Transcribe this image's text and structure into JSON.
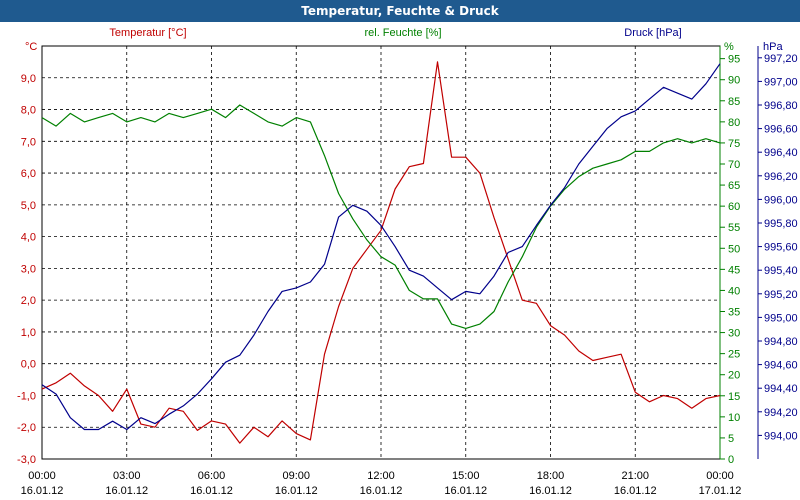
{
  "window": {
    "title": "Temperatur, Feuchte & Druck"
  },
  "colors": {
    "temperature": "#c00000",
    "humidity": "#008000",
    "pressure": "#00008b",
    "grid": "#000000",
    "titlebar": "#1f5a8f"
  },
  "chart_data": {
    "type": "line",
    "title": "Temperatur, Feuchte & Druck",
    "grid": true,
    "x": {
      "range": [
        "16.01.12 00:00",
        "17.01.12 00:00"
      ],
      "ticks": [
        {
          "time": "00:00",
          "date": "16.01.12"
        },
        {
          "time": "03:00",
          "date": "16.01.12"
        },
        {
          "time": "06:00",
          "date": "16.01.12"
        },
        {
          "time": "09:00",
          "date": "16.01.12"
        },
        {
          "time": "12:00",
          "date": "16.01.12"
        },
        {
          "time": "15:00",
          "date": "16.01.12"
        },
        {
          "time": "18:00",
          "date": "16.01.12"
        },
        {
          "time": "21:00",
          "date": "16.01.12"
        },
        {
          "time": "00:00",
          "date": "17.01.12"
        }
      ]
    },
    "axes": {
      "temperature": {
        "label": "Temperatur [°C]",
        "unit": "°C",
        "ylim": [
          -3.0,
          10.0
        ],
        "ticks": [
          "-3,0",
          "-2,0",
          "-1,0",
          "0,0",
          "1,0",
          "2,0",
          "3,0",
          "4,0",
          "5,0",
          "6,0",
          "7,0",
          "8,0",
          "9,0"
        ]
      },
      "humidity": {
        "label": "rel. Feuchte [%]",
        "unit": "%",
        "ylim": [
          0,
          98
        ],
        "ticks": [
          "0",
          "5",
          "10",
          "15",
          "20",
          "25",
          "30",
          "35",
          "40",
          "45",
          "50",
          "55",
          "60",
          "65",
          "70",
          "75",
          "80",
          "85",
          "90",
          "95"
        ]
      },
      "pressure": {
        "label": "Druck [hPa]",
        "unit": "hPa",
        "ylim": [
          993.8,
          997.3
        ],
        "ticks": [
          "994,00",
          "994,20",
          "994,40",
          "994,60",
          "994,80",
          "995,00",
          "995,20",
          "995,40",
          "995,60",
          "995,80",
          "996,00",
          "996,20",
          "996,40",
          "996,60",
          "996,80",
          "997,00",
          "997,20"
        ]
      }
    },
    "series": [
      {
        "name": "Temperatur [°C]",
        "axis": "temperature",
        "x_hours": [
          0,
          0.5,
          1,
          1.5,
          2,
          2.5,
          3,
          3.5,
          4,
          4.5,
          5,
          5.5,
          6,
          6.5,
          7,
          7.5,
          8,
          8.5,
          9,
          9.5,
          10,
          10.5,
          11,
          11.5,
          12,
          12.5,
          13,
          13.5,
          14,
          14.5,
          15,
          15.5,
          16,
          16.5,
          17,
          17.5,
          18,
          18.5,
          19,
          19.5,
          20,
          20.5,
          21,
          21.5,
          22,
          22.5,
          23,
          23.5,
          24
        ],
        "values": [
          -0.8,
          -0.6,
          -0.3,
          -0.7,
          -1.0,
          -1.5,
          -0.8,
          -1.9,
          -2.0,
          -1.4,
          -1.5,
          -2.1,
          -1.8,
          -1.9,
          -2.5,
          -2.0,
          -2.3,
          -1.8,
          -2.2,
          -2.4,
          0.3,
          1.8,
          3.0,
          3.6,
          4.2,
          5.5,
          6.2,
          6.3,
          9.5,
          6.5,
          6.5,
          6.0,
          4.6,
          3.3,
          2.0,
          1.9,
          1.2,
          0.9,
          0.4,
          0.1,
          0.2,
          0.3,
          -0.9,
          -1.2,
          -1.0,
          -1.1,
          -1.4,
          -1.1,
          -1.0
        ]
      },
      {
        "name": "rel. Feuchte [%]",
        "axis": "humidity",
        "x_hours": [
          0,
          0.5,
          1,
          1.5,
          2,
          2.5,
          3,
          3.5,
          4,
          4.5,
          5,
          5.5,
          6,
          6.5,
          7,
          7.5,
          8,
          8.5,
          9,
          9.5,
          10,
          10.5,
          11,
          11.5,
          12,
          12.5,
          13,
          13.5,
          14,
          14.5,
          15,
          15.5,
          16,
          16.5,
          17,
          17.5,
          18,
          18.5,
          19,
          19.5,
          20,
          20.5,
          21,
          21.5,
          22,
          22.5,
          23,
          23.5,
          24
        ],
        "values": [
          81,
          79,
          82,
          80,
          81,
          82,
          80,
          81,
          80,
          82,
          81,
          82,
          83,
          81,
          84,
          82,
          80,
          79,
          81,
          80,
          72,
          63,
          57,
          52,
          48,
          46,
          40,
          38,
          38,
          32,
          31,
          32,
          35,
          42,
          48,
          55,
          60,
          64,
          67,
          69,
          70,
          71,
          73,
          73,
          75,
          76,
          75,
          76,
          75
        ]
      },
      {
        "name": "Druck [hPa]",
        "axis": "pressure",
        "x_hours": [
          0,
          0.5,
          1,
          1.5,
          2,
          2.5,
          3,
          3.5,
          4,
          4.5,
          5,
          5.5,
          6,
          6.5,
          7,
          7.5,
          8,
          8.5,
          9,
          9.5,
          10,
          10.5,
          11,
          11.5,
          12,
          12.5,
          13,
          13.5,
          14,
          14.5,
          15,
          15.5,
          16,
          16.5,
          17,
          17.5,
          18,
          18.5,
          19,
          19.5,
          20,
          20.5,
          21,
          21.5,
          22,
          22.5,
          23,
          23.5,
          24
        ],
        "values": [
          994.43,
          994.35,
          994.15,
          994.05,
          994.05,
          994.12,
          994.05,
          994.15,
          994.1,
          994.18,
          994.25,
          994.35,
          994.48,
          994.62,
          994.68,
          994.85,
          995.05,
          995.22,
          995.25,
          995.3,
          995.45,
          995.85,
          995.95,
          995.9,
          995.78,
          995.6,
          995.4,
          995.35,
          995.25,
          995.15,
          995.22,
          995.2,
          995.35,
          995.55,
          995.6,
          995.78,
          995.95,
          996.1,
          996.3,
          996.45,
          996.6,
          996.7,
          996.75,
          996.85,
          996.95,
          996.9,
          996.85,
          996.98,
          997.15
        ]
      }
    ]
  }
}
